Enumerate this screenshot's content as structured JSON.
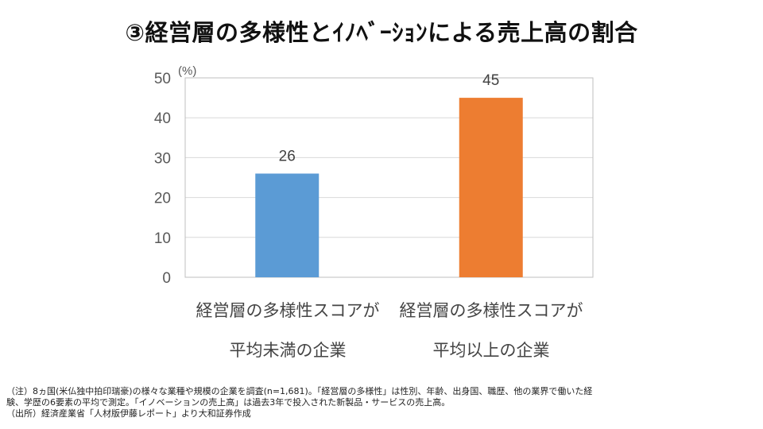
{
  "title": "③経営層の多様性とｲﾉﾍﾞｰｼｮﾝによる売上高の割合",
  "chart_data": {
    "type": "bar",
    "categories": [
      [
        "経営層の多様性スコアが",
        "平均未満の企業"
      ],
      [
        "経営層の多様性スコアが",
        "平均以上の企業"
      ]
    ],
    "values": [
      26,
      45
    ],
    "data_labels": [
      "26",
      "45"
    ],
    "colors": [
      "#5B9BD5",
      "#ED7D31"
    ],
    "ylim": [
      0,
      50
    ],
    "yticks": [
      "0",
      "10",
      "20",
      "30",
      "40",
      "50"
    ],
    "ylabel": "(%)",
    "grid": true
  },
  "footnotes": [
    "（注）8ヵ国(米仏独中拍印瑞豪)の様々な業種や規模の企業を調査(n=1,681)。「経営層の多様性」は性別、年齢、出身国、職歴、他の業界で働いた経",
    "験、学歴の6要素の平均で測定。「イノベーションの売上高」は過去3年で投入された新製品・サービスの売上高。",
    "（出所）経済産業省「人材版伊藤レポート」より大和証券作成"
  ]
}
